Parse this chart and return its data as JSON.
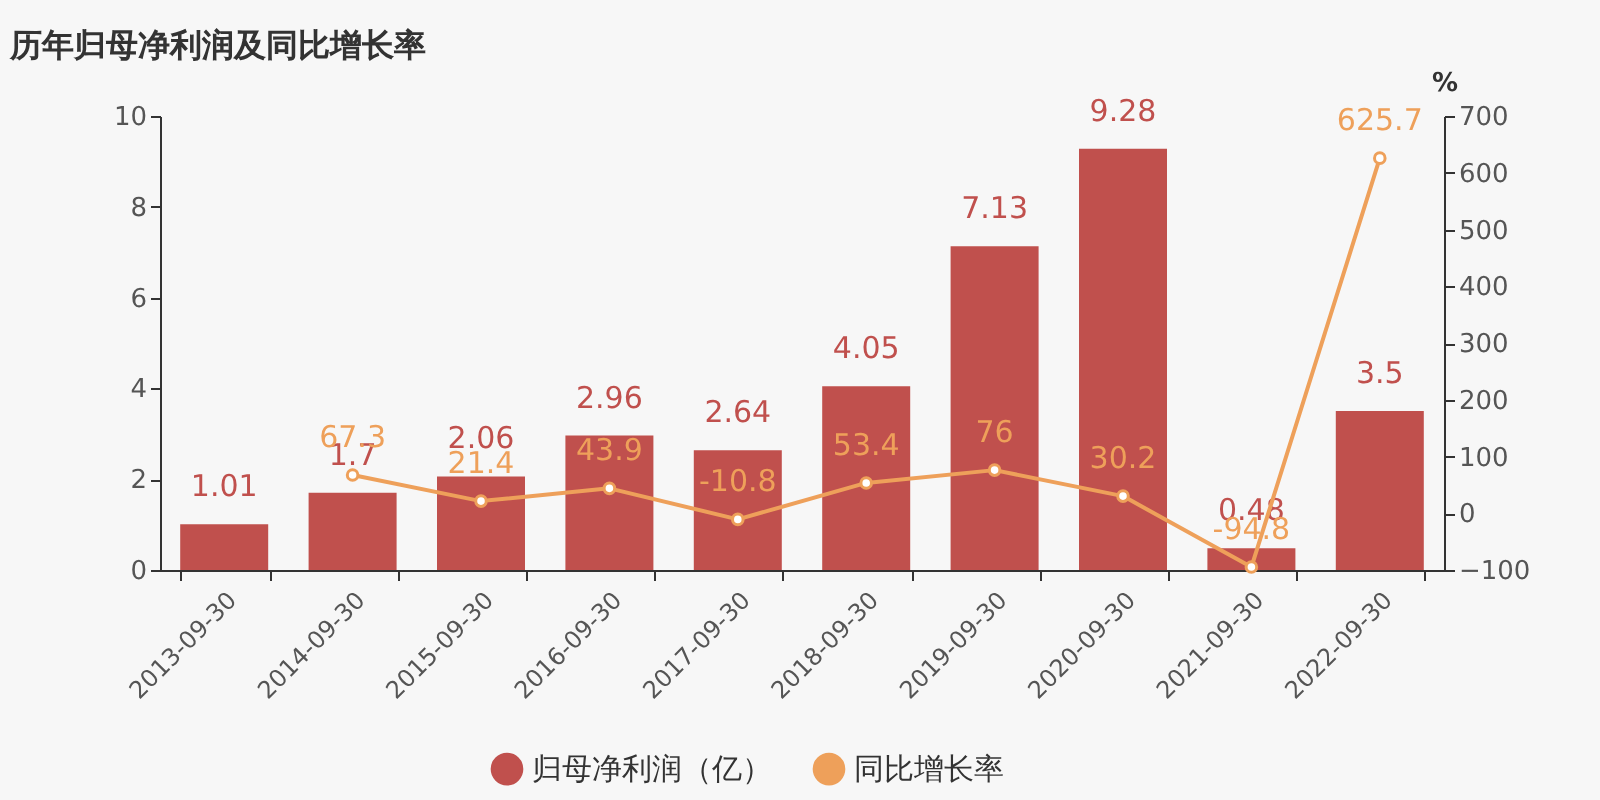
{
  "chart_data": {
    "type": "bar",
    "title": "历年归母净利润及同比增长率",
    "y2label": "%",
    "categories": [
      "2013-09-30",
      "2014-09-30",
      "2015-09-30",
      "2016-09-30",
      "2017-09-30",
      "2018-09-30",
      "2019-09-30",
      "2020-09-30",
      "2021-09-30",
      "2022-09-30"
    ],
    "series": [
      {
        "name": "归母净利润（亿）",
        "color": "#c0504d",
        "values": [
          1.01,
          1.7,
          2.06,
          2.96,
          2.64,
          4.05,
          7.13,
          9.28,
          0.48,
          3.5
        ]
      },
      {
        "name": "同比增长率",
        "type": "line",
        "axis": "y2",
        "color": "#eea05a",
        "values": [
          null,
          67.3,
          21.4,
          43.9,
          -10.8,
          53.4,
          76,
          30.2,
          -94.8,
          625.7
        ]
      }
    ],
    "ylim": [
      0,
      10
    ],
    "yticks": [
      0,
      2,
      4,
      6,
      8,
      10
    ],
    "y2lim": [
      -100,
      700
    ],
    "y2ticks": [
      -100,
      0,
      100,
      200,
      300,
      400,
      500,
      600,
      700
    ],
    "data_labels": true,
    "legend": "bottom",
    "marker": "circle",
    "grid": false
  }
}
